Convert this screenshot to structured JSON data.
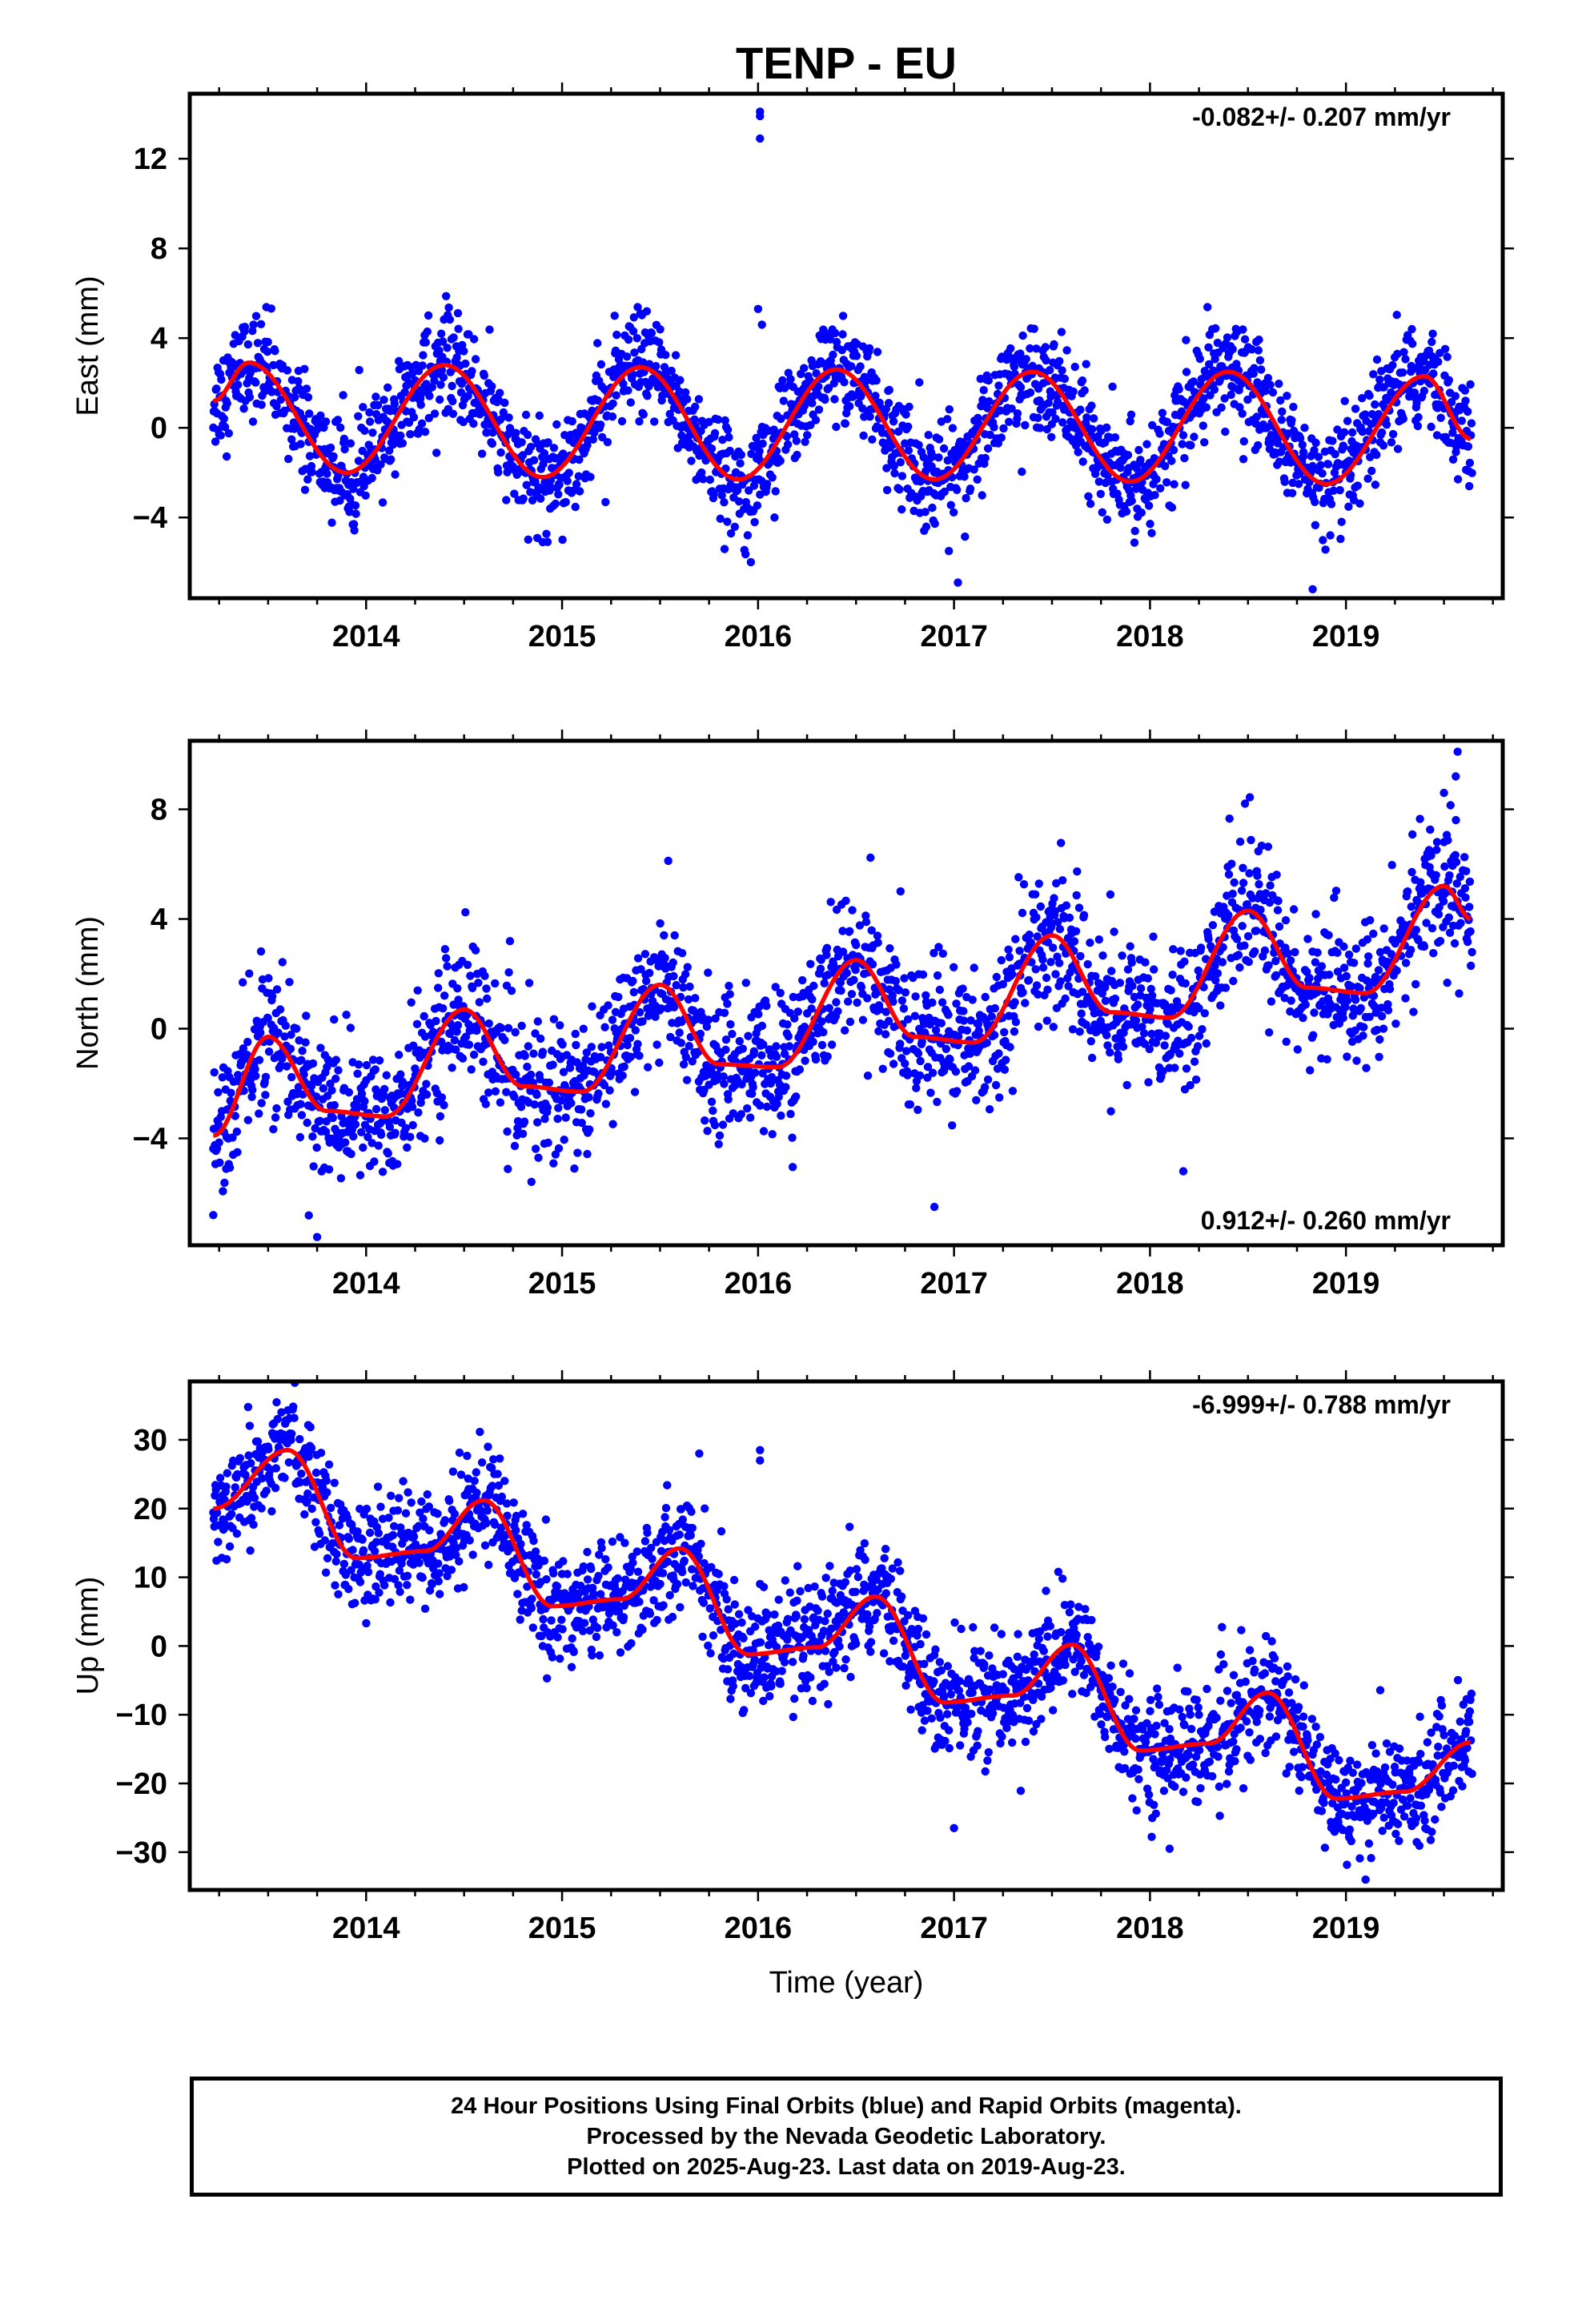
{
  "title": "TENP - EU",
  "chart_data": [
    {
      "type": "scatter",
      "panel": "east",
      "ylabel": "East (mm)",
      "xlabel": "",
      "xlim": [
        2013.1,
        2019.8
      ],
      "ylim": [
        -7.6,
        14.9
      ],
      "yticks": [
        -4,
        0,
        4,
        8,
        12
      ],
      "xticks": [
        2014,
        2015,
        2016,
        2017,
        2018,
        2019
      ],
      "rate_label": "-0.082+/- 0.207 mm/yr",
      "rate_label_position": "top-right",
      "series": [
        {
          "name": "",
          "color": "#0000ff",
          "kind": "points",
          "note_points_generated": true
        },
        {
          "name": "",
          "color": "#ff0000",
          "kind": "model-fit",
          "keypoints": [
            [
              2013.22,
              1.2
            ],
            [
              2013.4,
              2.9
            ],
            [
              2013.9,
              -2.0
            ],
            [
              2014.4,
              2.8
            ],
            [
              2014.9,
              -2.2
            ],
            [
              2015.4,
              2.7
            ],
            [
              2015.9,
              -2.3
            ],
            [
              2016.4,
              2.6
            ],
            [
              2016.9,
              -2.3
            ],
            [
              2017.4,
              2.5
            ],
            [
              2017.9,
              -2.4
            ],
            [
              2018.4,
              2.5
            ],
            [
              2018.9,
              -2.5
            ],
            [
              2019.4,
              2.3
            ],
            [
              2019.64,
              -0.5
            ]
          ]
        }
      ],
      "outliers": [
        [
          2016.01,
          14.1
        ],
        [
          2016.01,
          13.9
        ],
        [
          2016.01,
          12.9
        ],
        [
          2016.0,
          5.3
        ],
        [
          2016.02,
          4.6
        ],
        [
          2018.83,
          -7.2
        ],
        [
          2017.02,
          -6.9
        ]
      ]
    },
    {
      "type": "scatter",
      "panel": "north",
      "ylabel": "North (mm)",
      "xlabel": "",
      "xlim": [
        2013.1,
        2019.8
      ],
      "ylim": [
        -7.9,
        10.5
      ],
      "yticks": [
        -4,
        0,
        4,
        8
      ],
      "xticks": [
        2014,
        2015,
        2016,
        2017,
        2018,
        2019
      ],
      "rate_label": "0.912+/- 0.260 mm/yr",
      "rate_label_position": "bottom-right",
      "series": [
        {
          "name": "",
          "color": "#0000ff",
          "kind": "points"
        },
        {
          "name": "",
          "color": "#ff0000",
          "kind": "model-fit",
          "keypoints": [
            [
              2013.22,
              -3.9
            ],
            [
              2013.5,
              -0.3
            ],
            [
              2013.8,
              -3.0
            ],
            [
              2014.1,
              -3.2
            ],
            [
              2014.5,
              0.7
            ],
            [
              2014.8,
              -2.1
            ],
            [
              2015.1,
              -2.3
            ],
            [
              2015.5,
              1.6
            ],
            [
              2015.8,
              -1.3
            ],
            [
              2016.1,
              -1.4
            ],
            [
              2016.5,
              2.5
            ],
            [
              2016.8,
              -0.3
            ],
            [
              2017.1,
              -0.5
            ],
            [
              2017.5,
              3.4
            ],
            [
              2017.8,
              0.6
            ],
            [
              2018.1,
              0.4
            ],
            [
              2018.5,
              4.3
            ],
            [
              2018.8,
              1.5
            ],
            [
              2019.1,
              1.3
            ],
            [
              2019.5,
              5.2
            ],
            [
              2019.64,
              4.0
            ]
          ]
        }
      ],
      "outliers": [
        [
          2019.57,
          10.1
        ],
        [
          2019.56,
          9.2
        ],
        [
          2019.5,
          8.6
        ],
        [
          2013.22,
          -6.8
        ],
        [
          2013.75,
          -7.6
        ],
        [
          2016.9,
          -6.5
        ],
        [
          2018.17,
          -5.2
        ]
      ]
    },
    {
      "type": "scatter",
      "panel": "up",
      "ylabel": "Up (mm)",
      "xlabel": "Time (year)",
      "xlim": [
        2013.1,
        2019.8
      ],
      "ylim": [
        -35.5,
        38.5
      ],
      "yticks": [
        -30,
        -20,
        -10,
        0,
        10,
        20,
        30
      ],
      "xticks": [
        2014,
        2015,
        2016,
        2017,
        2018,
        2019
      ],
      "rate_label": "-6.999+/- 0.788 mm/yr",
      "rate_label_position": "top-right",
      "series": [
        {
          "name": "",
          "color": "#0000ff",
          "kind": "points"
        },
        {
          "name": "",
          "color": "#ff0000",
          "kind": "model-fit",
          "keypoints": [
            [
              2013.22,
              20.0
            ],
            [
              2013.6,
              28.5
            ],
            [
              2013.95,
              12.8
            ],
            [
              2014.3,
              13.8
            ],
            [
              2014.6,
              21.2
            ],
            [
              2014.95,
              5.8
            ],
            [
              2015.3,
              6.8
            ],
            [
              2015.6,
              14.2
            ],
            [
              2015.95,
              -1.2
            ],
            [
              2016.3,
              -0.2
            ],
            [
              2016.6,
              7.2
            ],
            [
              2016.95,
              -8.2
            ],
            [
              2017.3,
              -7.2
            ],
            [
              2017.6,
              0.2
            ],
            [
              2017.95,
              -15.2
            ],
            [
              2018.3,
              -14.2
            ],
            [
              2018.6,
              -6.8
            ],
            [
              2018.95,
              -22.2
            ],
            [
              2019.3,
              -21.2
            ],
            [
              2019.64,
              -14.0
            ]
          ]
        }
      ],
      "outliers": [
        [
          2016.01,
          28.5
        ],
        [
          2016.01,
          27.0
        ],
        [
          2015.7,
          28.0
        ],
        [
          2019.1,
          -34.0
        ],
        [
          2017.0,
          -26.5
        ],
        [
          2018.1,
          -29.5
        ]
      ]
    }
  ],
  "footer": {
    "line1": "24 Hour Positions Using Final Orbits (blue) and Rapid Orbits (magenta).",
    "line2": "Processed by the Nevada Geodetic Laboratory.",
    "line3": "Plotted on 2025-Aug-23. Last data on 2019-Aug-23."
  }
}
